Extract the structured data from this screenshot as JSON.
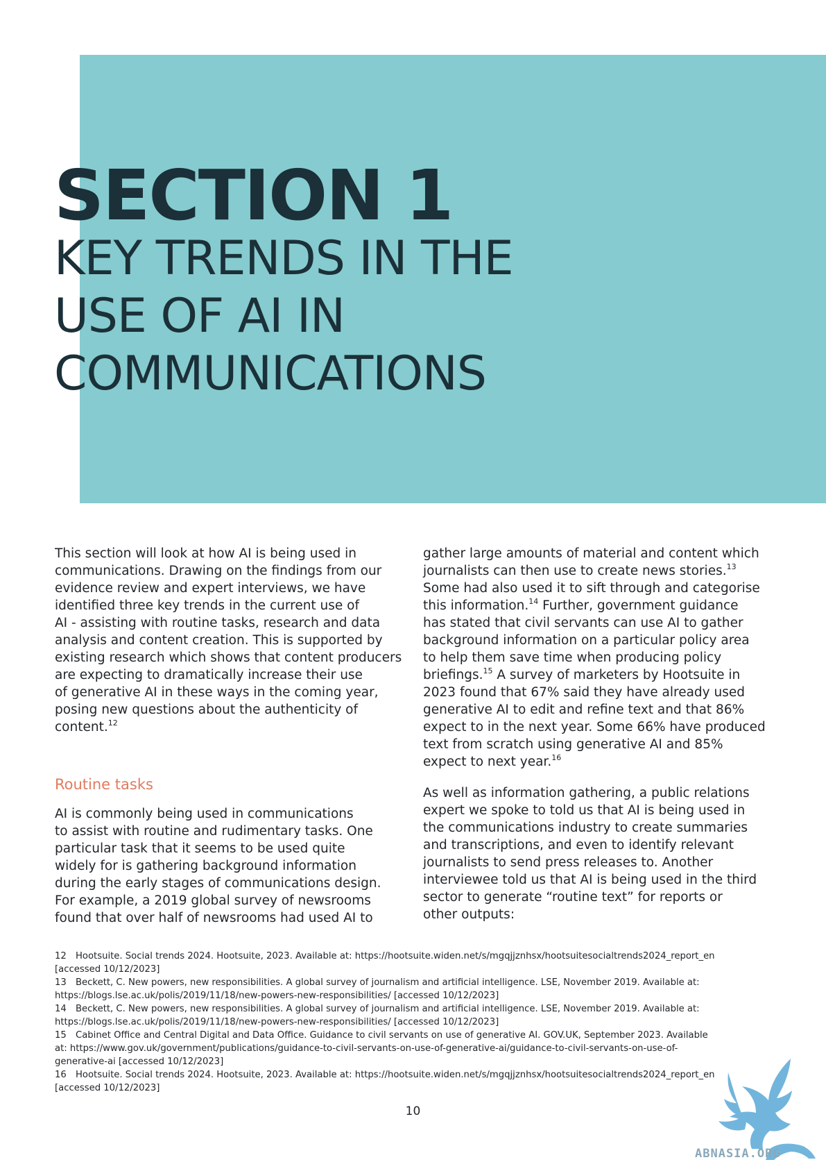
{
  "header": {
    "section_label": "SECTION 1",
    "title_lines": [
      "KEY TRENDS IN THE",
      "USE OF AI IN",
      "COMMUNICATIONS"
    ],
    "block_color": "#86cbcf"
  },
  "left_column": {
    "intro_lines": [
      "This section will look at how AI is being used in",
      "communications. Drawing on the findings from our",
      "evidence review and expert interviews, we have",
      "identified three key trends in the current use of",
      "AI - assisting with routine tasks, research and data",
      "analysis and content creation. This is supported by",
      "existing research which shows that content producers",
      "are expecting to dramatically increase their use",
      "of generative AI in these ways in the coming year,",
      "posing new questions about the authenticity of",
      "content."
    ],
    "intro_ref": "12",
    "subheading": "Routine tasks",
    "subheading_color": "#e07b5e",
    "routine_lines": [
      "AI is commonly being used in communications",
      "to assist with routine and rudimentary tasks. One",
      "particular task that it seems to be used quite",
      "widely for is gathering background information",
      "during the early stages of communications design.",
      "For example, a 2019 global survey of newsrooms",
      "found that over half of newsrooms had used AI to"
    ]
  },
  "right_column": {
    "p1": {
      "l1": "gather large amounts of material and content which",
      "l2": "journalists can then use to create news stories.",
      "r13": "13",
      "l3": "Some had also used it to sift through and categorise",
      "l4": "this information.",
      "r14": "14",
      "l4b": " Further, government guidance",
      "l5": "has stated that civil servants can use AI to gather",
      "l6": "background information on a particular policy area",
      "l7": "to help them save time when producing policy",
      "l8a": "briefings.",
      "r15": "15",
      "l8b": " A survey of marketers by Hootsuite in",
      "l9": "2023 found that 67% said they have already used",
      "l10": "generative AI to edit and refine text and that 86%",
      "l11": "expect to in the next year. Some 66% have produced",
      "l12": "text from scratch using generative AI and 85%",
      "l13": "expect to next year.",
      "r16": "16"
    },
    "p2_lines": [
      "As well as information gathering, a public relations",
      "expert we spoke to told us that AI is being used in",
      "the communications industry to create summaries",
      "and transcriptions, and even to identify relevant",
      "journalists to send press releases to. Another",
      "interviewee told us that AI is being used in the third",
      "sector to generate “routine text” for reports or",
      "other outputs:"
    ]
  },
  "footnotes": [
    {
      "num": "12",
      "lines": [
        "Hootsuite. Social trends 2024. Hootsuite, 2023. Available at: https://hootsuite.widen.net/s/mgqjjznhsx/hootsuitesocialtrends2024_report_en",
        "[accessed 10/12/2023]"
      ]
    },
    {
      "num": "13",
      "lines": [
        "Beckett, C. New powers, new responsibilities. A global survey of journalism and artificial intelligence. LSE, November 2019. Available at:",
        "https://blogs.lse.ac.uk/polis/2019/11/18/new-powers-new-responsibilities/ [accessed 10/12/2023]"
      ]
    },
    {
      "num": "14",
      "lines": [
        "Beckett, C. New powers, new responsibilities. A global survey of journalism and artificial intelligence. LSE, November 2019. Available at:",
        "https://blogs.lse.ac.uk/polis/2019/11/18/new-powers-new-responsibilities/ [accessed 10/12/2023]"
      ]
    },
    {
      "num": "15",
      "lines": [
        "Cabinet Office and Central Digital and Data Office. Guidance to civil servants on use of generative AI. GOV.UK, September 2023. Available",
        "at: https://www.gov.uk/government/publications/guidance-to-civil-servants-on-use-of-generative-ai/guidance-to-civil-servants-on-use-of-",
        "generative-ai [accessed 10/12/2023]"
      ]
    },
    {
      "num": "16",
      "lines": [
        "Hootsuite. Social trends 2024. Hootsuite, 2023. Available at: https://hootsuite.widen.net/s/mgqjjznhsx/hootsuitesocialtrends2024_report_en",
        "[accessed 10/12/2023]"
      ]
    }
  ],
  "page_number": "10",
  "watermark": {
    "text": "ABNASIA.ORG",
    "icon": "griffin-logo-icon",
    "color": "#5aa9d6"
  }
}
